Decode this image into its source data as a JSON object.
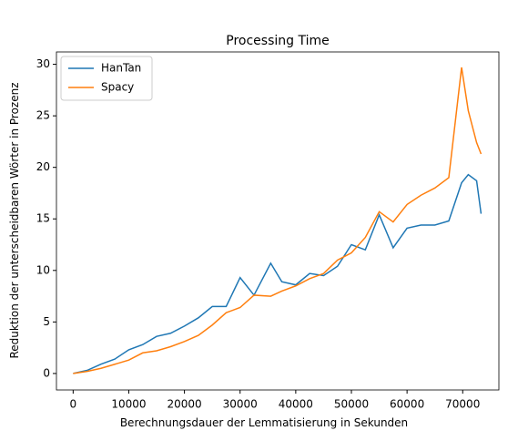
{
  "chart_data": {
    "type": "line",
    "title": "Processing Time",
    "xlabel": "Berechnungsdauer der Lemmatisierung in Sekunden",
    "ylabel": "Reduktion der unterscheidbaren Wörter in Prozenz",
    "x": [
      0,
      2500,
      5000,
      7500,
      10000,
      12500,
      15000,
      17500,
      20000,
      22500,
      25000,
      27500,
      30000,
      32500,
      35500,
      37500,
      40000,
      42500,
      45000,
      47500,
      50000,
      52500,
      55000,
      57500,
      60000,
      62500,
      65000,
      67500,
      69800,
      71000,
      72500,
      73300
    ],
    "series": [
      {
        "name": "HanTan",
        "color": "#1f77b4",
        "values": [
          0,
          0.3,
          0.9,
          1.4,
          2.3,
          2.8,
          3.6,
          3.9,
          4.6,
          5.4,
          6.5,
          6.5,
          9.3,
          7.6,
          10.7,
          8.9,
          8.6,
          9.7,
          9.5,
          10.4,
          12.5,
          12.0,
          15.4,
          12.2,
          14.1,
          14.4,
          14.4,
          14.8,
          18.5,
          19.3,
          18.7,
          15.5
        ]
      },
      {
        "name": "Spacy",
        "color": "#ff7f0e",
        "values": [
          0,
          0.2,
          0.5,
          0.9,
          1.3,
          2.0,
          2.2,
          2.6,
          3.1,
          3.7,
          4.7,
          5.9,
          6.4,
          7.6,
          7.5,
          8.0,
          8.5,
          9.2,
          9.7,
          11.0,
          11.7,
          13.2,
          15.7,
          14.7,
          16.4,
          17.3,
          18.0,
          19.0,
          29.7,
          25.5,
          22.4,
          21.3
        ]
      }
    ],
    "xlim": [
      -3000,
      76500
    ],
    "xticks": [
      0,
      10000,
      20000,
      30000,
      40000,
      50000,
      60000,
      70000
    ],
    "ylim": [
      -1.6,
      31.2
    ],
    "yticks": [
      0,
      5,
      10,
      15,
      20,
      25,
      30
    ],
    "legend": "upper left"
  }
}
